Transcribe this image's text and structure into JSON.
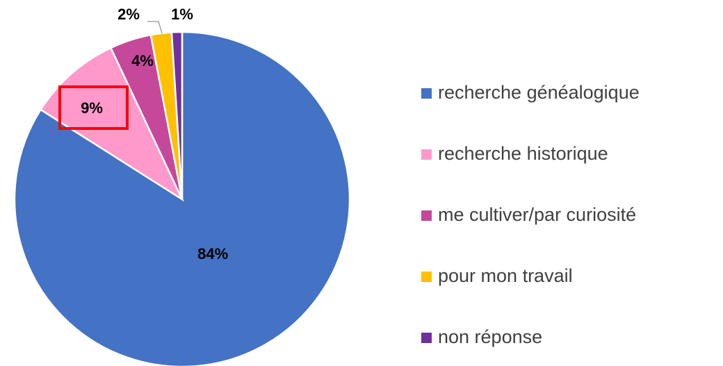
{
  "chart_data": {
    "type": "pie",
    "categories": [
      "recherche généalogique",
      "recherche historique",
      "me cultiver/par curiosité",
      "pour mon travail",
      "non réponse"
    ],
    "values": [
      84,
      9,
      4,
      2,
      1
    ],
    "value_labels": [
      "84%",
      "9%",
      "4%",
      "2%",
      "1%"
    ],
    "colors": [
      "#4472C4",
      "#FF99CC",
      "#C5489B",
      "#FFC000",
      "#7030A0"
    ],
    "legend": "right"
  }
}
